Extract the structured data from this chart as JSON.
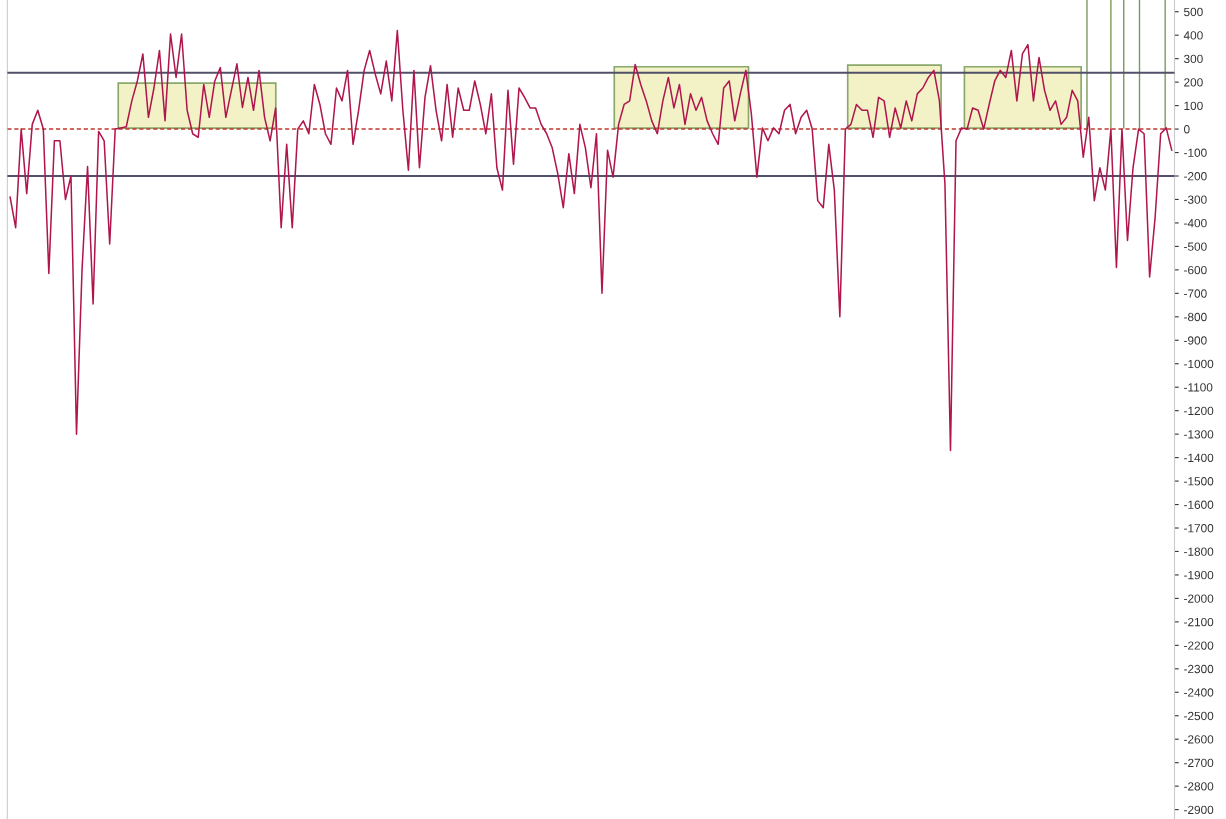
{
  "chart_data": {
    "type": "line",
    "categories": [
      null,
      null,
      null,
      null,
      null,
      null,
      null,
      null,
      null,
      null,
      null,
      null,
      null,
      null,
      null,
      null,
      null,
      null,
      null,
      null,
      null,
      null,
      null,
      null,
      null,
      null,
      null,
      null,
      null,
      null,
      null,
      null,
      null,
      null,
      null,
      null,
      null,
      null,
      null,
      null,
      null,
      null,
      null,
      null,
      null,
      null,
      null,
      null,
      null,
      null,
      null,
      null,
      null,
      null,
      null,
      null,
      null,
      null,
      null,
      null,
      null,
      null,
      null,
      null,
      null,
      null,
      null,
      null,
      null,
      null,
      null,
      null,
      null,
      null,
      null,
      null,
      null,
      null,
      null,
      null,
      null,
      null,
      null,
      null,
      null,
      null,
      null,
      null,
      null,
      null,
      null,
      null,
      null,
      null,
      null,
      null,
      null,
      null,
      null,
      null,
      null,
      null,
      null,
      null,
      null,
      null,
      null,
      null,
      null,
      null,
      null,
      null,
      null,
      null,
      null,
      null,
      null,
      null,
      null,
      null,
      null,
      null,
      null,
      null,
      null,
      null,
      null,
      null,
      null,
      null,
      null,
      null,
      null,
      null,
      null,
      null,
      null,
      null,
      null,
      null,
      null,
      null,
      null,
      null,
      null,
      null,
      null,
      null,
      null,
      null,
      null,
      null,
      null,
      null,
      null,
      null,
      null,
      null,
      null,
      null,
      null,
      null,
      null,
      null,
      null,
      null,
      null,
      null,
      null,
      null,
      null,
      null,
      null,
      null,
      null,
      null,
      null,
      null,
      null,
      null,
      null,
      null,
      null,
      null,
      null,
      null,
      null,
      null,
      null,
      null,
      null,
      null,
      null,
      null,
      null,
      null,
      null,
      null,
      null,
      null,
      null,
      null,
      null,
      null,
      null,
      null,
      null,
      null,
      null,
      null,
      null
    ],
    "series": [
      {
        "color": "#b0164e",
        "values": [
          -290,
          -420,
          0,
          -275,
          20,
          80,
          0,
          -615,
          -50,
          -50,
          -300,
          -200,
          -1300,
          -600,
          -160,
          -745,
          -10,
          -50,
          -490,
          0,
          5,
          10,
          120,
          205,
          320,
          50,
          175,
          335,
          36,
          405,
          220,
          405,
          80,
          -20,
          -35,
          190,
          50,
          205,
          262,
          50,
          165,
          278,
          92,
          220,
          80,
          250,
          50,
          -50,
          90,
          -420,
          -65,
          -420,
          0,
          35,
          -20,
          190,
          105,
          -20,
          -65,
          175,
          120,
          250,
          -65,
          80,
          250,
          335,
          235,
          150,
          290,
          120,
          420,
          80,
          -175,
          250,
          -165,
          135,
          270,
          80,
          -50,
          190,
          -35,
          175,
          80,
          80,
          205,
          105,
          -20,
          150,
          -165,
          -260,
          165,
          -150,
          175,
          135,
          90,
          90,
          20,
          -20,
          -80,
          -190,
          -335,
          -105,
          -275,
          20,
          -80,
          -250,
          -20,
          -700,
          -90,
          -205,
          20,
          105,
          120,
          275,
          190,
          120,
          35,
          -20,
          120,
          220,
          90,
          190,
          20,
          150,
          80,
          135,
          35,
          -20,
          -65,
          175,
          205,
          35,
          150,
          250,
          65,
          -205,
          5,
          -50,
          5,
          -20,
          80,
          105,
          -20,
          50,
          80,
          0,
          -305,
          -335,
          -65,
          -260,
          -800,
          0,
          20,
          105,
          80,
          80,
          -35,
          135,
          120,
          -35,
          90,
          5,
          120,
          35,
          150,
          175,
          220,
          250,
          120,
          -235,
          -1370,
          -50,
          5,
          0,
          90,
          80,
          0,
          105,
          205,
          250,
          220,
          335,
          120,
          320,
          360,
          120,
          305,
          165,
          80,
          120,
          20,
          50,
          165,
          120,
          -120,
          50,
          -305,
          -165,
          -260,
          0,
          -590,
          0,
          -475,
          -165,
          0,
          -20,
          -630,
          -375,
          -20,
          5,
          -90
        ]
      }
    ],
    "ylim": [
      -2940,
      550
    ],
    "yticks": [
      500,
      400,
      300,
      200,
      100,
      0,
      -100,
      -200,
      -300,
      -400,
      -500,
      -600,
      -700,
      -800,
      -900,
      -1000,
      -1100,
      -1200,
      -1300,
      -1400,
      -1500,
      -1600,
      -1700,
      -1800,
      -1900,
      -2000,
      -2100,
      -2200,
      -2300,
      -2400,
      -2500,
      -2600,
      -2700,
      -2800,
      -2900
    ],
    "tick_labels": "y",
    "ref_lines": [
      {
        "axis": "y",
        "value": 240,
        "color": "#505068",
        "line_style": "solid"
      },
      {
        "axis": "y",
        "value": -200,
        "color": "#505068",
        "line_style": "solid"
      },
      {
        "axis": "y",
        "value": 0,
        "color": "#c0392b",
        "line_style": "dashed"
      }
    ],
    "grid": false
  }
}
